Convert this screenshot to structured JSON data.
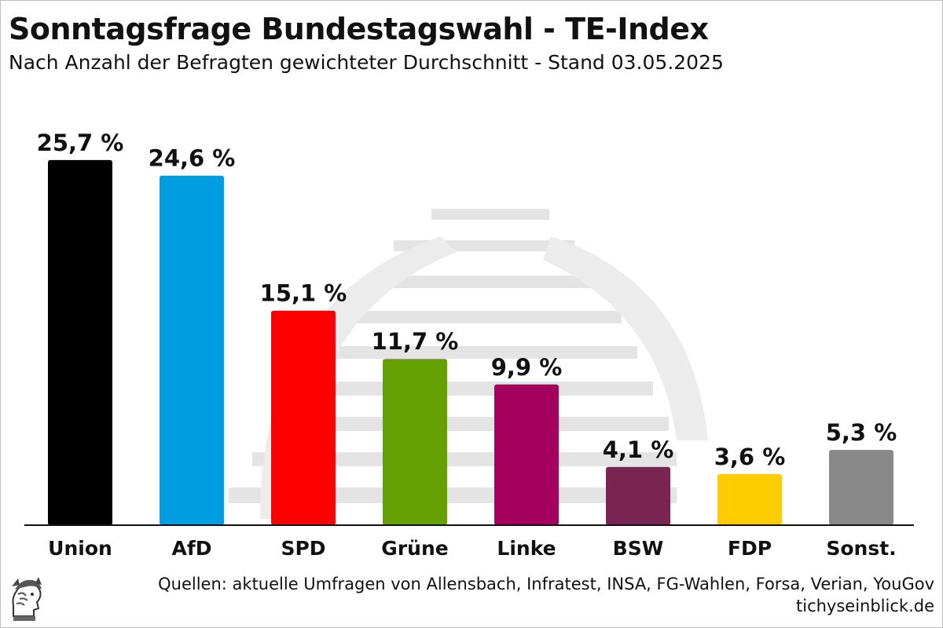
{
  "chart_data": {
    "type": "bar",
    "title": "Sonntagsfrage Bundestagswahl - TE-Index",
    "subtitle": "Nach Anzahl der Befragten gewichteter Durchschnitt - Stand 03.05.2025",
    "categories": [
      "Union",
      "AfD",
      "SPD",
      "Grüne",
      "Linke",
      "BSW",
      "FDP",
      "Sonst."
    ],
    "values": [
      25.7,
      24.6,
      15.1,
      11.7,
      9.9,
      4.1,
      3.6,
      5.3
    ],
    "data_labels": [
      "25,7 %",
      "24,6 %",
      "15,1 %",
      "11,7 %",
      "9,9 %",
      "4,1 %",
      "3,6 %",
      "5,3 %"
    ],
    "colors": [
      "#000000",
      "#009ee0",
      "#ff0000",
      "#64a000",
      "#a6005f",
      "#7a2452",
      "#ffcc00",
      "#888888"
    ],
    "xlabel": "",
    "ylabel": "",
    "ylim": [
      0,
      26
    ],
    "grid": false,
    "legend": "none"
  },
  "footer": {
    "source": "Quellen: aktuelle Umfragen von Allensbach, Infratest, INSA, FG-Wahlen, Forsa, Verian, YouGov",
    "website": "tichyseinblick.de"
  },
  "icons": {
    "logo": "hermes-head-logo",
    "background": "reichstag-dome-watermark"
  }
}
